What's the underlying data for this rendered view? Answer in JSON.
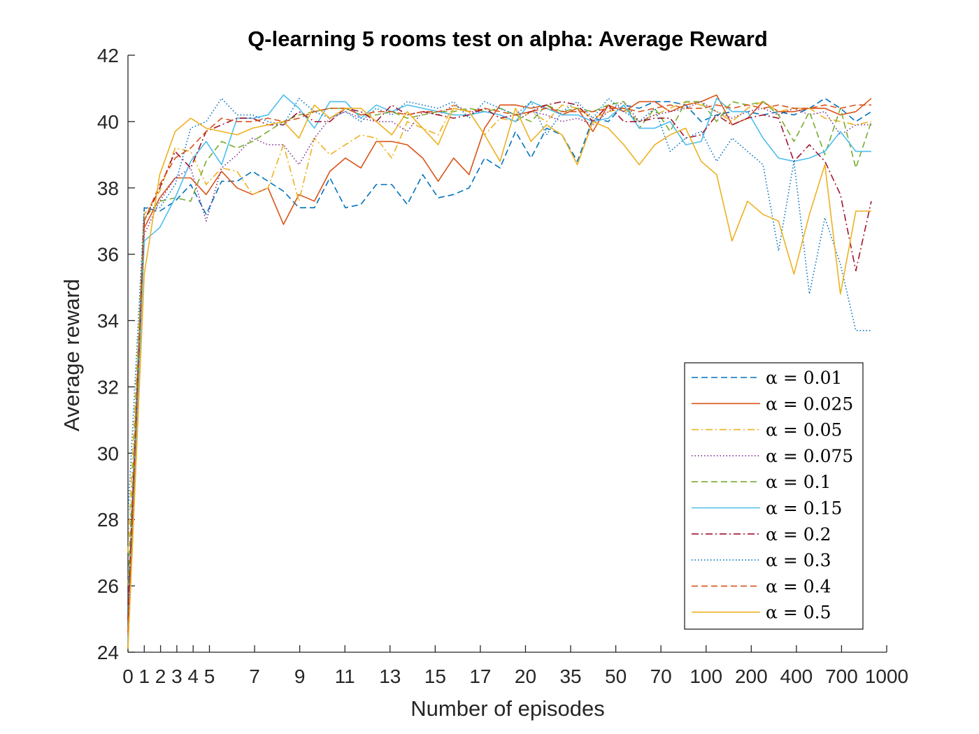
{
  "chart_data": {
    "type": "line",
    "title": "Q-learning 5 rooms test on alpha: Average Reward",
    "xlabel": "Number of episodes",
    "ylabel": "Average reward",
    "x_ticks": [
      "0",
      "1",
      "2",
      "3",
      "4",
      "5",
      "7",
      "9",
      "11",
      "13",
      "15",
      "17",
      "20",
      "35",
      "50",
      "70",
      "100",
      "200",
      "400",
      "700",
      "1000"
    ],
    "ylim": [
      24,
      42
    ],
    "y_ticks": [
      24,
      26,
      28,
      30,
      32,
      34,
      36,
      38,
      40,
      42
    ],
    "grid": false,
    "legend_position": "bottom-right",
    "series": [
      {
        "name": "α = 0.01",
        "color": "#0072BD",
        "dash": "dashed",
        "values": [
          25.2,
          37.4,
          37.3,
          37.6,
          38.1,
          37.2,
          38.2,
          38.2,
          38.5,
          38.2,
          37.9,
          37.4,
          37.4,
          38.3,
          37.4,
          37.5,
          38.1,
          38.1,
          37.5,
          38.4,
          37.7,
          37.8,
          38.0,
          38.9,
          38.6,
          39.7,
          38.9,
          39.8,
          39.6,
          38.8,
          40.1,
          40.0,
          40.5,
          40.4,
          40.6,
          40.6,
          40.5,
          40.0,
          40.2,
          40.3,
          40.3,
          40.2,
          40.3,
          40.2,
          40.4,
          40.7,
          40.4,
          40.0,
          40.3
        ]
      },
      {
        "name": "α = 0.025",
        "color": "#D95319",
        "dash": "solid",
        "values": [
          24.5,
          36.8,
          37.7,
          38.3,
          38.3,
          37.8,
          38.5,
          38.0,
          37.8,
          38.0,
          36.9,
          37.8,
          37.6,
          38.5,
          38.9,
          38.6,
          39.4,
          39.4,
          39.3,
          38.9,
          38.2,
          38.9,
          38.4,
          39.8,
          40.5,
          40.5,
          40.4,
          40.5,
          40.2,
          40.4,
          39.7,
          40.5,
          40.3,
          40.6,
          40.6,
          40.3,
          40.5,
          40.6,
          40.8,
          39.9,
          40.1,
          40.6,
          40.3,
          40.3,
          40.4,
          40.4,
          40.2,
          40.3,
          40.7
        ]
      },
      {
        "name": "α = 0.05",
        "color": "#EDB120",
        "dash": "dashdot",
        "values": [
          27.0,
          37.2,
          37.9,
          39.2,
          39.1,
          38.1,
          38.6,
          38.5,
          37.8,
          38.0,
          39.3,
          37.6,
          39.5,
          39.0,
          39.3,
          39.6,
          39.5,
          38.9,
          40.0,
          39.8,
          39.6,
          40.5,
          40.3,
          39.6,
          40.1,
          40.0,
          40.3,
          40.0,
          40.5,
          40.4,
          40.1,
          40.3,
          40.4,
          40.0,
          40.2,
          40.4,
          40.6,
          40.5,
          40.3,
          40.0,
          40.4,
          40.6,
          40.3,
          40.4,
          40.4,
          40.1,
          40.0,
          39.9,
          40.0
        ]
      },
      {
        "name": "α = 0.075",
        "color": "#7E2F8E",
        "dash": "dotted",
        "values": [
          25.5,
          36.6,
          37.6,
          38.3,
          38.6,
          37.0,
          38.6,
          39.0,
          39.5,
          39.3,
          39.3,
          38.7,
          39.5,
          40.1,
          40.3,
          40.1,
          40.0,
          40.0,
          39.7,
          40.3,
          40.2,
          40.5,
          40.3,
          40.3,
          40.2,
          40.0,
          40.3,
          40.2,
          40.0,
          40.1,
          39.9,
          40.3,
          40.6,
          40.0,
          40.2,
          40.3,
          40.4,
          40.6,
          40.3,
          40.1,
          40.3,
          40.4,
          40.2,
          40.4,
          40.2,
          40.3,
          39.6,
          39.9,
          39.9
        ]
      },
      {
        "name": "α = 0.1",
        "color": "#77AC30",
        "dash": "dashed",
        "values": [
          26.0,
          37.1,
          37.6,
          37.7,
          37.6,
          38.8,
          39.4,
          39.2,
          39.4,
          39.7,
          40.0,
          40.2,
          40.3,
          40.4,
          40.4,
          40.2,
          40.2,
          40.3,
          40.1,
          40.2,
          40.3,
          40.3,
          40.4,
          40.3,
          40.4,
          40.2,
          40.0,
          40.5,
          40.3,
          40.4,
          40.3,
          40.5,
          40.6,
          39.8,
          40.4,
          39.7,
          40.6,
          40.6,
          40.0,
          40.6,
          40.5,
          40.6,
          40.2,
          39.4,
          40.3,
          39.0,
          40.4,
          38.6,
          40.0
        ]
      },
      {
        "name": "α = 0.15",
        "color": "#4DBEEE",
        "dash": "solid",
        "values": [
          24.3,
          36.4,
          36.8,
          37.7,
          38.8,
          39.4,
          38.7,
          40.1,
          40.1,
          40.2,
          40.8,
          40.4,
          39.8,
          40.6,
          40.6,
          40.1,
          40.5,
          40.3,
          40.5,
          40.4,
          40.3,
          40.2,
          40.2,
          40.3,
          40.2,
          40.0,
          40.6,
          40.4,
          40.2,
          40.2,
          40.0,
          40.1,
          40.5,
          39.8,
          39.8,
          40.0,
          39.3,
          39.4,
          40.7,
          40.3,
          40.3,
          39.5,
          38.9,
          38.8,
          38.9,
          39.1,
          39.7,
          39.1,
          39.1
        ]
      },
      {
        "name": "α = 0.2",
        "color": "#A2142F",
        "dash": "dashdot",
        "values": [
          25.0,
          37.0,
          38.0,
          39.1,
          38.6,
          39.7,
          39.9,
          40.1,
          40.1,
          39.9,
          39.9,
          40.3,
          40.0,
          40.0,
          40.4,
          40.3,
          40.0,
          40.5,
          40.2,
          40.3,
          40.2,
          40.1,
          40.2,
          40.4,
          40.1,
          40.2,
          40.3,
          40.5,
          40.6,
          40.5,
          40.0,
          40.5,
          40.0,
          40.0,
          40.1,
          40.1,
          39.5,
          39.6,
          40.2,
          39.9,
          40.1,
          40.2,
          40.1,
          38.8,
          39.3,
          38.8,
          37.8,
          35.5,
          37.6
        ]
      },
      {
        "name": "α = 0.3",
        "color": "#0072BD",
        "dash": "dotted",
        "values": [
          28.1,
          37.4,
          37.4,
          38.1,
          39.8,
          40.0,
          40.7,
          40.2,
          40.2,
          40.0,
          39.9,
          40.7,
          40.3,
          40.1,
          40.3,
          40.0,
          40.4,
          40.2,
          40.6,
          40.5,
          40.4,
          40.6,
          40.1,
          40.6,
          40.4,
          40.2,
          40.6,
          39.6,
          40.3,
          40.6,
          40.1,
          40.7,
          40.3,
          40.0,
          40.4,
          39.1,
          39.5,
          39.7,
          38.8,
          39.5,
          39.1,
          38.7,
          36.1,
          38.8,
          34.8,
          37.1,
          35.7,
          33.7,
          33.7
        ]
      },
      {
        "name": "α = 0.4",
        "color": "#D95319",
        "dash": "dashed",
        "values": [
          24.6,
          37.0,
          38.1,
          38.9,
          39.2,
          39.7,
          40.1,
          40.0,
          40.0,
          40.1,
          40.0,
          40.1,
          40.3,
          40.4,
          40.4,
          40.2,
          40.3,
          40.3,
          40.2,
          40.3,
          40.3,
          40.4,
          40.3,
          40.4,
          40.3,
          40.2,
          40.3,
          40.4,
          40.3,
          40.3,
          40.3,
          40.4,
          40.4,
          40.3,
          40.4,
          40.5,
          40.4,
          40.4,
          40.5,
          40.4,
          40.5,
          40.4,
          40.5,
          40.4,
          40.4,
          40.5,
          40.4,
          40.5,
          40.5
        ]
      },
      {
        "name": "α = 0.5",
        "color": "#EDB120",
        "dash": "solid",
        "values": [
          24.1,
          35.4,
          38.4,
          39.7,
          40.1,
          39.8,
          39.7,
          39.6,
          39.8,
          39.9,
          40.0,
          39.5,
          40.5,
          40.1,
          40.4,
          40.4,
          40.0,
          39.6,
          40.3,
          39.8,
          39.3,
          40.4,
          40.3,
          39.6,
          38.8,
          40.4,
          39.4,
          39.9,
          39.6,
          38.7,
          40.0,
          39.8,
          39.3,
          38.7,
          39.3,
          39.6,
          39.8,
          38.8,
          38.4,
          36.4,
          37.6,
          37.2,
          37.0,
          35.4,
          37.2,
          38.7,
          34.8,
          37.3,
          37.3
        ]
      }
    ]
  }
}
